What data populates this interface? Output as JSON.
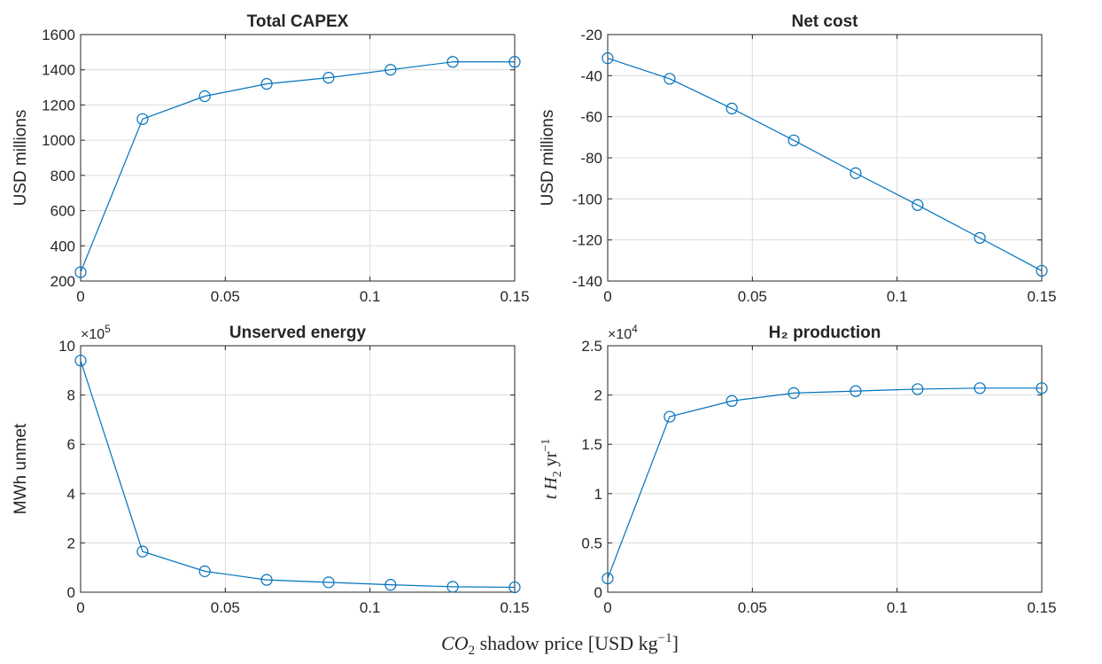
{
  "figure": {
    "xlabel_parts": {
      "co": "CO",
      "sub": "2",
      "rest": " shadow price [USD kg",
      "sup": "−1",
      "end": "]"
    }
  },
  "chart_data": [
    {
      "type": "line",
      "title": "Total CAPEX",
      "ylabel": "USD millions",
      "xlim": [
        0,
        0.15
      ],
      "ylim": [
        200,
        1600
      ],
      "xticks": [
        "0",
        "0.05",
        "0.1",
        "0.15"
      ],
      "xtick_values": [
        0,
        0.05,
        0.1,
        0.15
      ],
      "yticks": [
        "200",
        "400",
        "600",
        "800",
        "1000",
        "1200",
        "1400",
        "1600"
      ],
      "ytick_values": [
        200,
        400,
        600,
        800,
        1000,
        1200,
        1400,
        1600
      ],
      "grid": true,
      "x": [
        0,
        0.0214,
        0.0429,
        0.0643,
        0.0857,
        0.1071,
        0.1286,
        0.15
      ],
      "y": [
        250,
        1120,
        1250,
        1320,
        1355,
        1400,
        1445,
        1445
      ]
    },
    {
      "type": "line",
      "title": "Net cost",
      "ylabel": "USD millions",
      "xlim": [
        0,
        0.15
      ],
      "ylim": [
        -140,
        -20
      ],
      "xticks": [
        "0",
        "0.05",
        "0.1",
        "0.15"
      ],
      "xtick_values": [
        0,
        0.05,
        0.1,
        0.15
      ],
      "yticks": [
        "-140",
        "-120",
        "-100",
        "-80",
        "-60",
        "-40",
        "-20"
      ],
      "ytick_values": [
        -140,
        -120,
        -100,
        -80,
        -60,
        -40,
        -20
      ],
      "grid": true,
      "x": [
        0,
        0.0214,
        0.0429,
        0.0643,
        0.0857,
        0.1071,
        0.1286,
        0.15
      ],
      "y": [
        -31.5,
        -41.5,
        -56,
        -71.5,
        -87.5,
        -103,
        -119,
        -135
      ]
    },
    {
      "type": "line",
      "title": "Unserved energy",
      "ylabel": "MWh unmet",
      "multiplier": {
        "base": "×10",
        "exp": "5"
      },
      "xlim": [
        0,
        0.15
      ],
      "ylim": [
        0,
        10
      ],
      "xticks": [
        "0",
        "0.05",
        "0.1",
        "0.15"
      ],
      "xtick_values": [
        0,
        0.05,
        0.1,
        0.15
      ],
      "yticks": [
        "0",
        "2",
        "4",
        "6",
        "8",
        "10"
      ],
      "ytick_values": [
        0,
        2,
        4,
        6,
        8,
        10
      ],
      "grid": true,
      "x": [
        0,
        0.0214,
        0.0429,
        0.0643,
        0.0857,
        0.1071,
        0.1286,
        0.15
      ],
      "y": [
        9.4,
        1.65,
        0.85,
        0.5,
        0.4,
        0.3,
        0.22,
        0.2
      ]
    },
    {
      "type": "line",
      "title": "H₂  production",
      "ylabel_parts": {
        "t": "t ",
        "h": "H",
        "sub": "2",
        "rest": " yr",
        "sup": "−1"
      },
      "multiplier": {
        "base": "×10",
        "exp": "4"
      },
      "xlim": [
        0,
        0.15
      ],
      "ylim": [
        0,
        2.5
      ],
      "xticks": [
        "0",
        "0.05",
        "0.1",
        "0.15"
      ],
      "xtick_values": [
        0,
        0.05,
        0.1,
        0.15
      ],
      "yticks": [
        "0",
        "0.5",
        "1",
        "1.5",
        "2",
        "2.5"
      ],
      "ytick_values": [
        0,
        0.5,
        1,
        1.5,
        2,
        2.5
      ],
      "grid": true,
      "x": [
        0,
        0.0214,
        0.0429,
        0.0643,
        0.0857,
        0.1071,
        0.1286,
        0.15
      ],
      "y": [
        0.14,
        1.78,
        1.94,
        2.02,
        2.04,
        2.06,
        2.07,
        2.07
      ]
    }
  ]
}
